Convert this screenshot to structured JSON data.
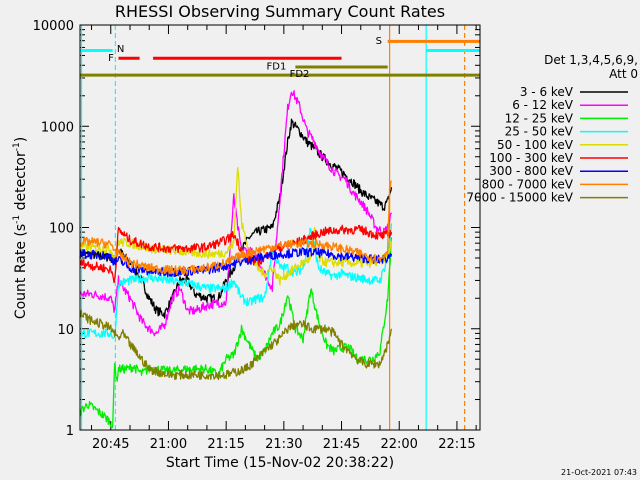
{
  "chart_data": {
    "type": "line",
    "title": "RHESSI Observing Summary Count Rates",
    "xlabel": "Start Time (15-Nov-02 20:38:22)",
    "ylabel_main": "Count Rate (s",
    "ylabel_sup1": "-1",
    "ylabel_mid": " detector",
    "ylabel_sup2": "-1",
    "ylabel_end": ")",
    "timestamp": "21-Oct-2021 07:43",
    "yscale": "log",
    "xlim_minutes": [
      -8,
      96
    ],
    "ylim": [
      1,
      10000
    ],
    "x_tick_labels": [
      {
        "min": 0,
        "label": "20:45"
      },
      {
        "min": 15,
        "label": "21:00"
      },
      {
        "min": 30,
        "label": "21:15"
      },
      {
        "min": 45,
        "label": "21:30"
      },
      {
        "min": 60,
        "label": "21:45"
      },
      {
        "min": 75,
        "label": "22:00"
      },
      {
        "min": 90,
        "label": "22:15"
      }
    ],
    "y_tick_labels": [
      {
        "v": 1,
        "label": "1"
      },
      {
        "v": 10,
        "label": "10"
      },
      {
        "v": 100,
        "label": "100"
      },
      {
        "v": 1000,
        "label": "1000"
      },
      {
        "v": 10000,
        "label": "10000"
      }
    ],
    "legend": {
      "header1": "Det 1,3,4,5,6,9,",
      "header2": "Att 0",
      "entries": [
        {
          "label": "3 - 6 keV",
          "color": "#000000"
        },
        {
          "label": "6 - 12 keV",
          "color": "#ff00ff"
        },
        {
          "label": "12 - 25 keV",
          "color": "#00ee00"
        },
        {
          "label": "25 - 50 keV",
          "color": "#00ffff"
        },
        {
          "label": "50 - 100 keV",
          "color": "#dddd00"
        },
        {
          "label": "100 - 300 keV",
          "color": "#ff0000"
        },
        {
          "label": "300 - 800 keV",
          "color": "#0000ff"
        },
        {
          "label": "800 - 7000 keV",
          "color": "#ff8000"
        },
        {
          "label": "7000 - 15000 keV",
          "color": "#808000"
        }
      ]
    },
    "flag_labels": {
      "N": "N",
      "F": "F",
      "S": "S",
      "FD1": "FD1",
      "FD2": "FD2"
    },
    "flags": [
      {
        "name": "N",
        "color": "#00ffff",
        "y": 5600,
        "segments": [
          [
            -8,
            0.5
          ],
          [
            82,
            96
          ]
        ]
      },
      {
        "name": "S",
        "color": "#ff8000",
        "y": 6900,
        "segments": [
          [
            72,
            96
          ]
        ]
      },
      {
        "name": "F",
        "color": "#ff0000",
        "y": 4700,
        "segments": [
          [
            2,
            7.5
          ],
          [
            11,
            60
          ]
        ]
      },
      {
        "name": "FD1",
        "color": "#808000",
        "y": 3850,
        "segments": [
          [
            48,
            72
          ]
        ]
      },
      {
        "name": "FD2",
        "color": "#808000",
        "y": 3200,
        "segments": [
          [
            -8,
            96
          ]
        ]
      }
    ],
    "vlines": [
      {
        "x": -7.6,
        "color": "#00ffff",
        "dashed": false
      },
      {
        "x": 1.2,
        "color": "#00ffff",
        "dashed": true
      },
      {
        "x": 72.5,
        "color": "#ff8000",
        "dashed": false
      },
      {
        "x": 82,
        "color": "#00ffff",
        "dashed": false
      },
      {
        "x": 92,
        "color": "#ff8000",
        "dashed": true
      }
    ],
    "series": [
      {
        "name": "3 - 6 keV",
        "color": "#000000",
        "x": [
          -8,
          -5,
          -2,
          0,
          1,
          2,
          5,
          8,
          10,
          12,
          14,
          16,
          18,
          20,
          22,
          25,
          28,
          30,
          32,
          34,
          36,
          38,
          40,
          42,
          44,
          46,
          47,
          49,
          51,
          53,
          55,
          57,
          59,
          61,
          63,
          65,
          67,
          69,
          71,
          72,
          73
        ],
        "y": [
          55,
          54,
          52,
          50,
          48,
          60,
          45,
          30,
          20,
          15,
          14,
          20,
          30,
          30,
          22,
          20,
          20,
          30,
          40,
          60,
          80,
          90,
          95,
          100,
          200,
          700,
          1100,
          900,
          700,
          600,
          500,
          430,
          380,
          330,
          280,
          230,
          200,
          180,
          160,
          180,
          250
        ]
      },
      {
        "name": "6 - 12 keV",
        "color": "#ff00ff",
        "x": [
          -8,
          -5,
          -2,
          0,
          1,
          2,
          5,
          8,
          10,
          12,
          14,
          16,
          18,
          20,
          22,
          25,
          28,
          30,
          32,
          33,
          34,
          36,
          38,
          40,
          42,
          44,
          46,
          47,
          49,
          51,
          53,
          55,
          57,
          59,
          61,
          63,
          65,
          67,
          69,
          71,
          72,
          73
        ],
        "y": [
          22,
          22,
          21,
          20,
          15,
          30,
          20,
          12,
          10,
          9,
          11,
          20,
          25,
          15,
          15,
          17,
          18,
          18,
          200,
          100,
          60,
          60,
          50,
          35,
          25,
          200,
          1500,
          2300,
          1600,
          900,
          700,
          500,
          400,
          330,
          300,
          220,
          180,
          140,
          100,
          90,
          100,
          140
        ]
      },
      {
        "name": "12 - 25 keV",
        "color": "#00ee00",
        "x": [
          -8,
          -6,
          -4,
          -2,
          0,
          0.5,
          1,
          1.5,
          2,
          4,
          6,
          8,
          10,
          12,
          15,
          20,
          25,
          28,
          30,
          32,
          34,
          36,
          38,
          40,
          42,
          44,
          46,
          48,
          50,
          52,
          54,
          56,
          58,
          60,
          62,
          64,
          66,
          68,
          70,
          72,
          73
        ],
        "y": [
          1.5,
          1.8,
          1.6,
          1.4,
          1.2,
          1,
          5,
          3,
          4,
          4,
          4.2,
          3.6,
          4,
          4,
          3.8,
          4,
          4,
          3.5,
          5,
          5.5,
          10,
          7,
          5,
          6,
          9,
          11,
          22,
          10,
          8,
          25,
          12,
          7,
          6,
          6.5,
          6.5,
          5,
          5,
          5,
          6,
          20,
          80
        ]
      },
      {
        "name": "25 - 50 keV",
        "color": "#00ffff",
        "x": [
          -8,
          -5,
          -2,
          0,
          1,
          2,
          5,
          10,
          15,
          20,
          25,
          28,
          30,
          32,
          34,
          36,
          38,
          40,
          42,
          44,
          46,
          48,
          50,
          52,
          54,
          56,
          58,
          60,
          62,
          64,
          66,
          68,
          70,
          72,
          73
        ],
        "y": [
          9,
          9,
          9,
          9,
          8,
          28,
          30,
          32,
          30,
          28,
          25,
          25,
          25,
          30,
          20,
          18,
          20,
          20,
          60,
          40,
          40,
          35,
          40,
          100,
          40,
          35,
          33,
          35,
          33,
          32,
          31,
          30,
          30,
          50,
          110
        ]
      },
      {
        "name": "50 - 100 keV",
        "color": "#dddd00",
        "x": [
          -8,
          -5,
          -2,
          0,
          1,
          2,
          5,
          10,
          15,
          20,
          25,
          28,
          30,
          32,
          33,
          34,
          36,
          38,
          40,
          42,
          44,
          46,
          48,
          50,
          52,
          53,
          54,
          56,
          58,
          60,
          62,
          64,
          66,
          68,
          70,
          72,
          73
        ],
        "y": [
          65,
          63,
          62,
          60,
          50,
          72,
          70,
          62,
          60,
          57,
          55,
          55,
          57,
          70,
          430,
          110,
          60,
          40,
          35,
          40,
          30,
          35,
          40,
          45,
          50,
          100,
          50,
          45,
          45,
          45,
          45,
          44,
          44,
          45,
          45,
          55,
          70
        ]
      },
      {
        "name": "100 - 300 keV",
        "color": "#ff0000",
        "x": [
          -8,
          -5,
          -2,
          0,
          1,
          2,
          5,
          10,
          15,
          20,
          25,
          30,
          32,
          35,
          38,
          40,
          42,
          45,
          48,
          50,
          55,
          60,
          65,
          70,
          72,
          73
        ],
        "y": [
          45,
          42,
          40,
          38,
          30,
          95,
          75,
          65,
          62,
          62,
          64,
          75,
          85,
          50,
          45,
          50,
          60,
          65,
          70,
          75,
          90,
          95,
          95,
          82,
          85,
          90
        ]
      },
      {
        "name": "300 - 800 keV",
        "color": "#0000ff",
        "x": [
          -8,
          -5,
          -2,
          0,
          1,
          2,
          5,
          10,
          15,
          20,
          25,
          30,
          35,
          40,
          45,
          50,
          55,
          60,
          65,
          70,
          72,
          73
        ],
        "y": [
          55,
          54,
          53,
          52,
          45,
          48,
          40,
          37,
          36,
          37,
          38,
          42,
          47,
          52,
          55,
          57,
          56,
          52,
          50,
          48,
          50,
          55
        ]
      },
      {
        "name": "800 - 7000 keV",
        "color": "#ff8000",
        "x": [
          -8,
          -5,
          -2,
          0,
          1,
          2,
          5,
          10,
          15,
          20,
          25,
          30,
          35,
          40,
          45,
          50,
          55,
          60,
          65,
          70,
          72,
          72.5,
          73
        ],
        "y": [
          72,
          72,
          70,
          68,
          60,
          55,
          45,
          40,
          38,
          38,
          40,
          45,
          55,
          62,
          67,
          70,
          68,
          62,
          55,
          48,
          60,
          260,
          290
        ]
      },
      {
        "name": "7000 - 15000 keV",
        "color": "#808000",
        "x": [
          -8,
          -5,
          -2,
          0,
          1,
          2,
          3,
          5,
          8,
          10,
          15,
          20,
          25,
          30,
          35,
          38,
          40,
          42,
          44,
          46,
          48,
          50,
          52,
          54,
          56,
          58,
          60,
          62,
          64,
          66,
          68,
          70,
          72,
          73
        ],
        "y": [
          14,
          12,
          11,
          10,
          9,
          8,
          9,
          7,
          5,
          4,
          3.5,
          3.5,
          3.5,
          3.5,
          4,
          5,
          6,
          7,
          8,
          10,
          11,
          11,
          10,
          10,
          10,
          9,
          7,
          6,
          5,
          4.5,
          4.5,
          4.5,
          7,
          10
        ]
      }
    ]
  }
}
